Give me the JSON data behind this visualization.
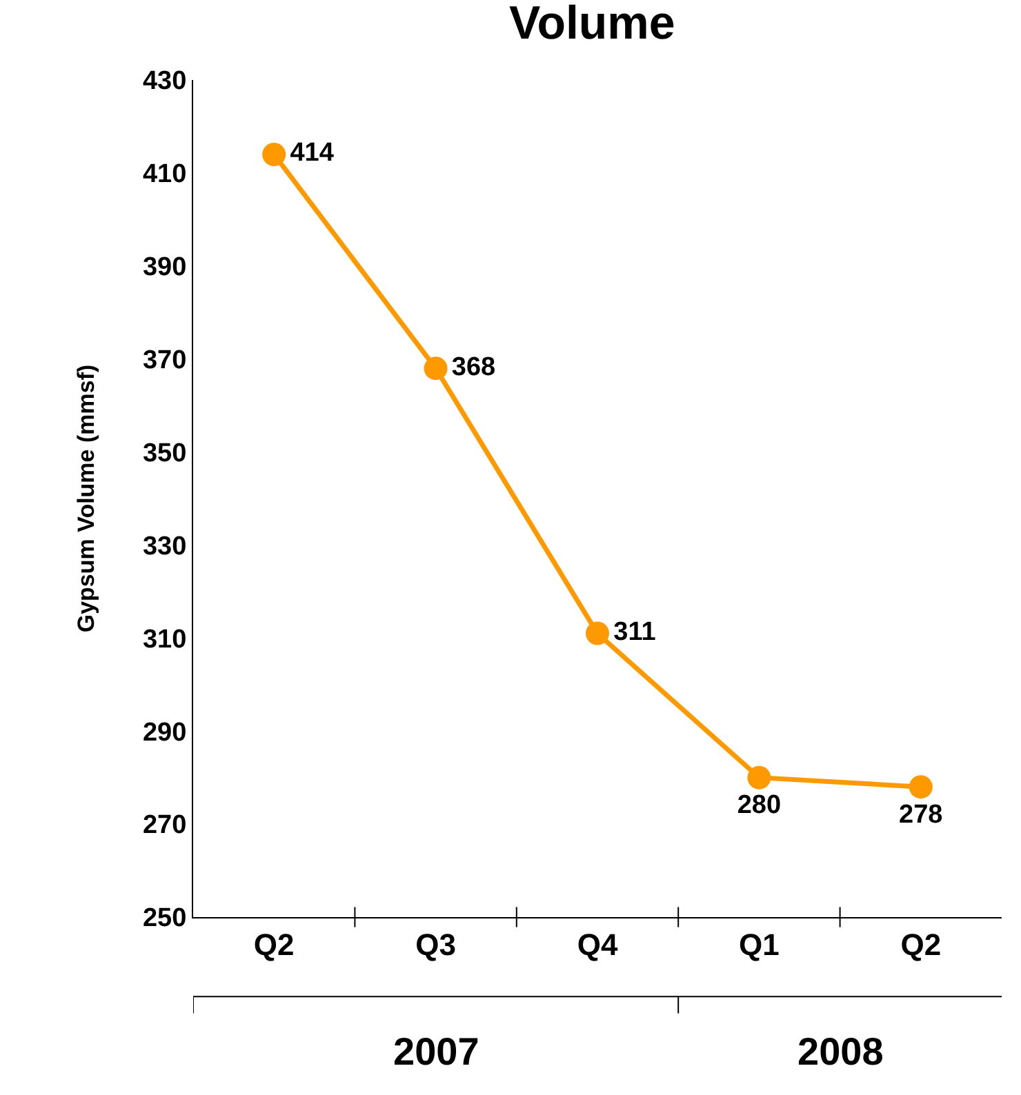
{
  "chart_data": {
    "type": "line",
    "title": "Volume",
    "ylabel": "Gypsum Volume (mmsf)",
    "categories": [
      "Q2",
      "Q3",
      "Q4",
      "Q1",
      "Q2"
    ],
    "series": [
      {
        "color": "#ff9900",
        "values": [
          414,
          368,
          311,
          280,
          278
        ]
      }
    ],
    "ylim": [
      250,
      430
    ],
    "yticks": [
      250,
      270,
      290,
      310,
      330,
      350,
      370,
      390,
      410,
      430
    ],
    "grid": false,
    "legend": false,
    "marker": "circle",
    "line_style": "solid",
    "data_labels": true,
    "annotations": [
      "2007",
      "2008"
    ]
  }
}
